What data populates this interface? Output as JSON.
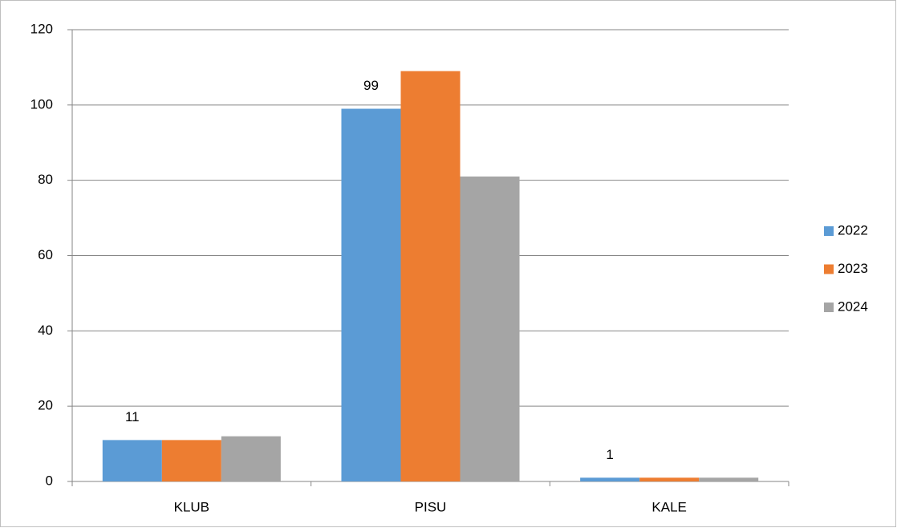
{
  "chart_data": {
    "type": "bar",
    "categories": [
      "KLUB",
      "PISU",
      "KALE"
    ],
    "series": [
      {
        "name": "2022",
        "color": "#5b9bd5",
        "values": [
          11,
          99,
          1
        ],
        "data_labels": true
      },
      {
        "name": "2023",
        "color": "#ed7d31",
        "values": [
          11,
          109,
          1
        ]
      },
      {
        "name": "2024",
        "color": "#a5a5a5",
        "values": [
          12,
          81,
          1
        ]
      }
    ],
    "ylim": [
      0,
      120
    ],
    "yticks": [
      0,
      20,
      40,
      60,
      80,
      100,
      120
    ],
    "grid": true,
    "legend": "right"
  }
}
